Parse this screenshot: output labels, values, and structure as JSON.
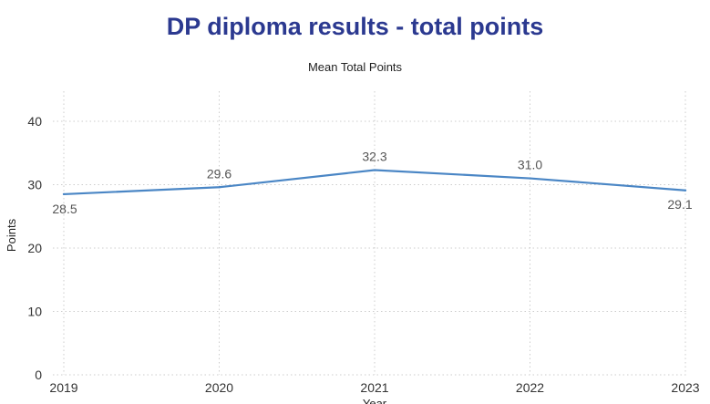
{
  "header": {
    "title": "DP diploma results - total points"
  },
  "chart_data": {
    "type": "line",
    "title": "Mean Total Points",
    "xlabel": "Year",
    "ylabel": "Points",
    "categories": [
      "2019",
      "2020",
      "2021",
      "2022",
      "2023"
    ],
    "series": [
      {
        "values": [
          28.5,
          29.6,
          32.3,
          31.0,
          29.1
        ],
        "color": "#4a86c5"
      }
    ],
    "data_labels": [
      "28.5",
      "29.6",
      "32.3",
      "31.0",
      "29.1"
    ],
    "ylim": [
      0,
      40
    ],
    "yticks": [
      0,
      10,
      20,
      30,
      40
    ],
    "grid": true,
    "grid_style": "dotted"
  }
}
